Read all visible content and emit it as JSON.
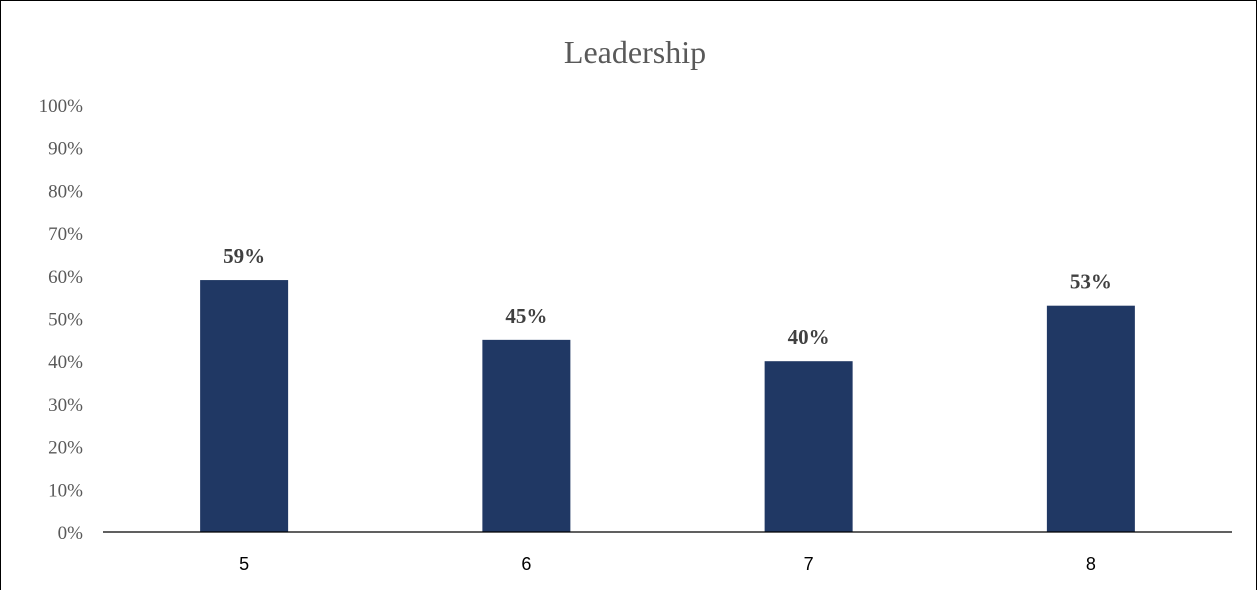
{
  "chart_data": {
    "type": "bar",
    "title": "Leadership",
    "xlabel": "",
    "ylabel": "",
    "categories": [
      "5",
      "6",
      "7",
      "8"
    ],
    "values": [
      0.59,
      0.45,
      0.4,
      0.53
    ],
    "data_labels": [
      "59%",
      "45%",
      "40%",
      "53%"
    ],
    "ylim": [
      0,
      1
    ],
    "y_ticks": [
      "0%",
      "10%",
      "20%",
      "30%",
      "40%",
      "50%",
      "60%",
      "70%",
      "80%",
      "90%",
      "100%"
    ],
    "grid": false,
    "legend": "none",
    "colors": {
      "bar": "#203864",
      "axis": "#000000",
      "text": "#595959",
      "label": "#404040"
    }
  }
}
